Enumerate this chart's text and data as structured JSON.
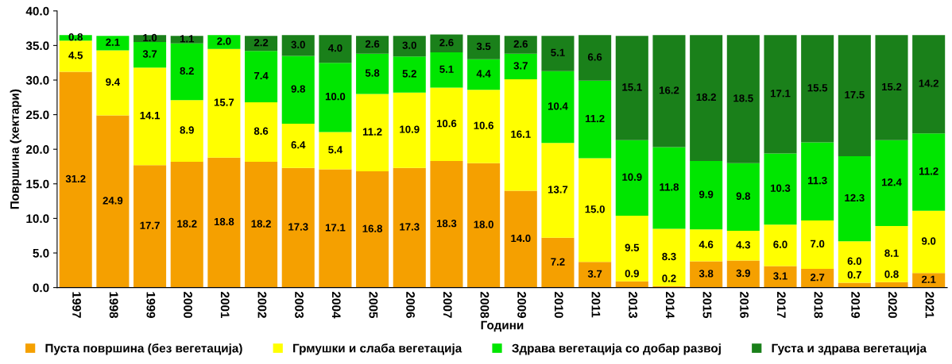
{
  "chart_data": {
    "type": "bar",
    "stacked": true,
    "xlabel": "Години",
    "ylabel": "Површина (хектари)",
    "categories": [
      "1997",
      "1998",
      "1999",
      "2000",
      "2001",
      "2002",
      "2003",
      "2004",
      "2005",
      "2006",
      "2007",
      "2008",
      "2009",
      "2010",
      "2011",
      "2013",
      "2014",
      "2015",
      "2016",
      "2017",
      "2018",
      "2019",
      "2020",
      "2021"
    ],
    "series": [
      {
        "name": "Пуста површина (без вегетација)",
        "color": "#f5a000",
        "values": [
          31.2,
          24.9,
          17.7,
          18.2,
          18.8,
          18.2,
          17.3,
          17.1,
          16.8,
          17.3,
          18.3,
          18.0,
          14.0,
          7.2,
          3.7,
          0.9,
          0.2,
          3.8,
          3.9,
          3.1,
          2.7,
          0.7,
          0.8,
          2.1
        ],
        "value_labels": [
          "31.2",
          "24.9",
          "17.7",
          "18.2",
          "18.8",
          "18.2",
          "17.3",
          "17.1",
          "16.8",
          "17.3",
          "18.3",
          "18.0",
          "14.0",
          "7.2",
          "3.7",
          "0.9",
          "0.2",
          "3.8",
          "3.9",
          "3.1",
          "2.7",
          "0.7",
          "0.8",
          "2.1"
        ]
      },
      {
        "name": "Грмушки и слаба вегетација",
        "color": "#ffff00",
        "values": [
          4.5,
          9.4,
          14.1,
          8.9,
          15.7,
          8.6,
          6.4,
          5.4,
          11.2,
          10.9,
          10.6,
          10.6,
          16.1,
          13.7,
          15.0,
          9.5,
          8.3,
          4.6,
          4.3,
          6.0,
          7.0,
          6.0,
          8.1,
          9.0
        ],
        "value_labels": [
          "4.5",
          "9.4",
          "14.1",
          "8.9",
          "15.7",
          "8.6",
          "6.4",
          "5.4",
          "11.2",
          "10.9",
          "10.6",
          "10.6",
          "16.1",
          "13.7",
          "15.0",
          "9.5",
          "8.3",
          "4.6",
          "4.3",
          "6.0",
          "7.0",
          "6.0",
          "8.1",
          "9.0"
        ]
      },
      {
        "name": "Здрава вегетација со добар развој",
        "color": "#00e600",
        "values": [
          0.8,
          2.1,
          3.7,
          8.2,
          2.0,
          7.4,
          9.8,
          10.0,
          5.8,
          5.2,
          5.1,
          4.4,
          3.7,
          10.4,
          11.2,
          10.9,
          11.8,
          9.9,
          9.8,
          10.3,
          11.3,
          12.3,
          12.4,
          11.2
        ],
        "value_labels": [
          "0.8",
          "2.1",
          "3.7",
          "8.2",
          "2.0",
          "7.4",
          "9.8",
          "10.0",
          "5.8",
          "5.2",
          "5.1",
          "4.4",
          "3.7",
          "10.4",
          "11.2",
          "10.9",
          "11.8",
          "9.9",
          "9.8",
          "10.3",
          "11.3",
          "12.3",
          "12.4",
          "11.2"
        ]
      },
      {
        "name": "Густа и здрава вегетација",
        "color": "#1a801a",
        "values": [
          null,
          null,
          1.0,
          1.1,
          null,
          2.2,
          3.0,
          4.0,
          2.6,
          3.0,
          2.6,
          3.5,
          2.6,
          5.1,
          6.6,
          15.1,
          16.2,
          18.2,
          18.5,
          17.1,
          15.5,
          17.5,
          15.2,
          14.2
        ],
        "value_labels": [
          null,
          null,
          "1.0",
          "1.1",
          null,
          "2.2",
          "3.0",
          "4.0",
          "2.6",
          "3.0",
          "2.6",
          "3.5",
          "2.6",
          "5.1",
          "6.6",
          "15.1",
          "16.2",
          "18.2",
          "18.5",
          "17.1",
          "15.5",
          "17.5",
          "15.2",
          "14.2"
        ]
      }
    ],
    "ylim": [
      0,
      40
    ],
    "yticks": [
      {
        "value": 0,
        "label": "0.0"
      },
      {
        "value": 5,
        "label": "5.0"
      },
      {
        "value": 10,
        "label": "10.0"
      },
      {
        "value": 15,
        "label": "15.0"
      },
      {
        "value": 20,
        "label": "20.0"
      },
      {
        "value": 25,
        "label": "25.0"
      },
      {
        "value": 30,
        "label": "30.0"
      },
      {
        "value": 35,
        "label": "35.0"
      },
      {
        "value": 40,
        "label": "40.0"
      }
    ],
    "legend": "bottom"
  }
}
